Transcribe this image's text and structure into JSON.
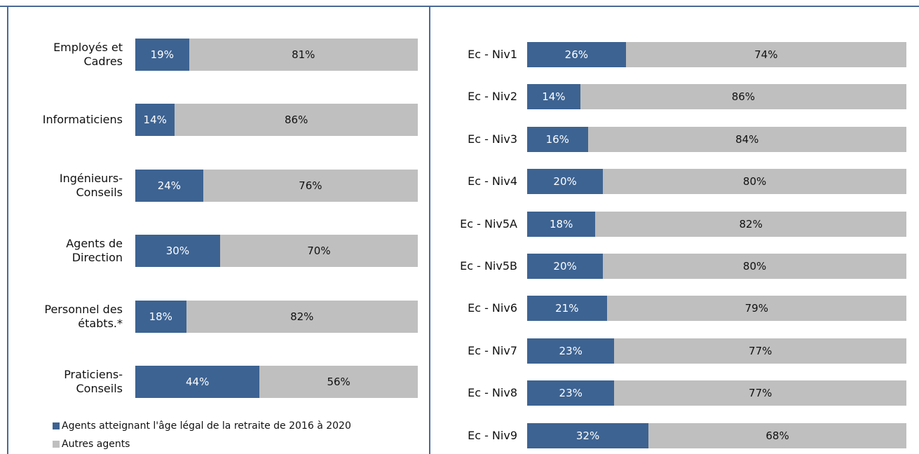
{
  "chart_data": [
    {
      "type": "bar",
      "orientation": "horizontal",
      "stacked": true,
      "categories": [
        "Employés et Cadres",
        "Informaticiens",
        "Ingénieurs-Conseils",
        "Agents de Direction",
        "Personnel des étabts.*",
        "Praticiens-Conseils"
      ],
      "xlim": [
        0,
        100
      ],
      "series": [
        {
          "name": "Agents atteignant l'âge légal de la retraite de 2016 à 2020",
          "color": "#3d6392",
          "values": [
            19,
            14,
            24,
            30,
            18,
            44
          ],
          "value_labels": [
            "19%",
            "14%",
            "24%",
            "30%",
            "18%",
            "44%"
          ]
        },
        {
          "name": "Autres agents",
          "color": "#bfbfbf",
          "values": [
            81,
            86,
            76,
            70,
            82,
            56
          ],
          "value_labels": [
            "81%",
            "86%",
            "76%",
            "70%",
            "82%",
            "56%"
          ]
        }
      ],
      "legend": "bottom-left"
    },
    {
      "type": "bar",
      "orientation": "horizontal",
      "stacked": true,
      "categories": [
        "Ec - Niv1",
        "Ec - Niv2",
        "Ec - Niv3",
        "Ec - Niv4",
        "Ec - Niv5A",
        "Ec - Niv5B",
        "Ec - Niv6",
        "Ec - Niv7",
        "Ec - Niv8",
        "Ec - Niv9"
      ],
      "xlim": [
        0,
        100
      ],
      "series": [
        {
          "color": "#3d6392",
          "values": [
            26,
            14,
            16,
            20,
            18,
            20,
            21,
            23,
            23,
            32
          ],
          "value_labels": [
            "26%",
            "14%",
            "16%",
            "20%",
            "18%",
            "20%",
            "21%",
            "23%",
            "23%",
            "32%"
          ]
        },
        {
          "color": "#bfbfbf",
          "values": [
            74,
            86,
            84,
            80,
            82,
            80,
            79,
            77,
            77,
            68
          ],
          "value_labels": [
            "74%",
            "86%",
            "84%",
            "80%",
            "82%",
            "80%",
            "79%",
            "77%",
            "77%",
            "68%"
          ]
        }
      ]
    }
  ]
}
